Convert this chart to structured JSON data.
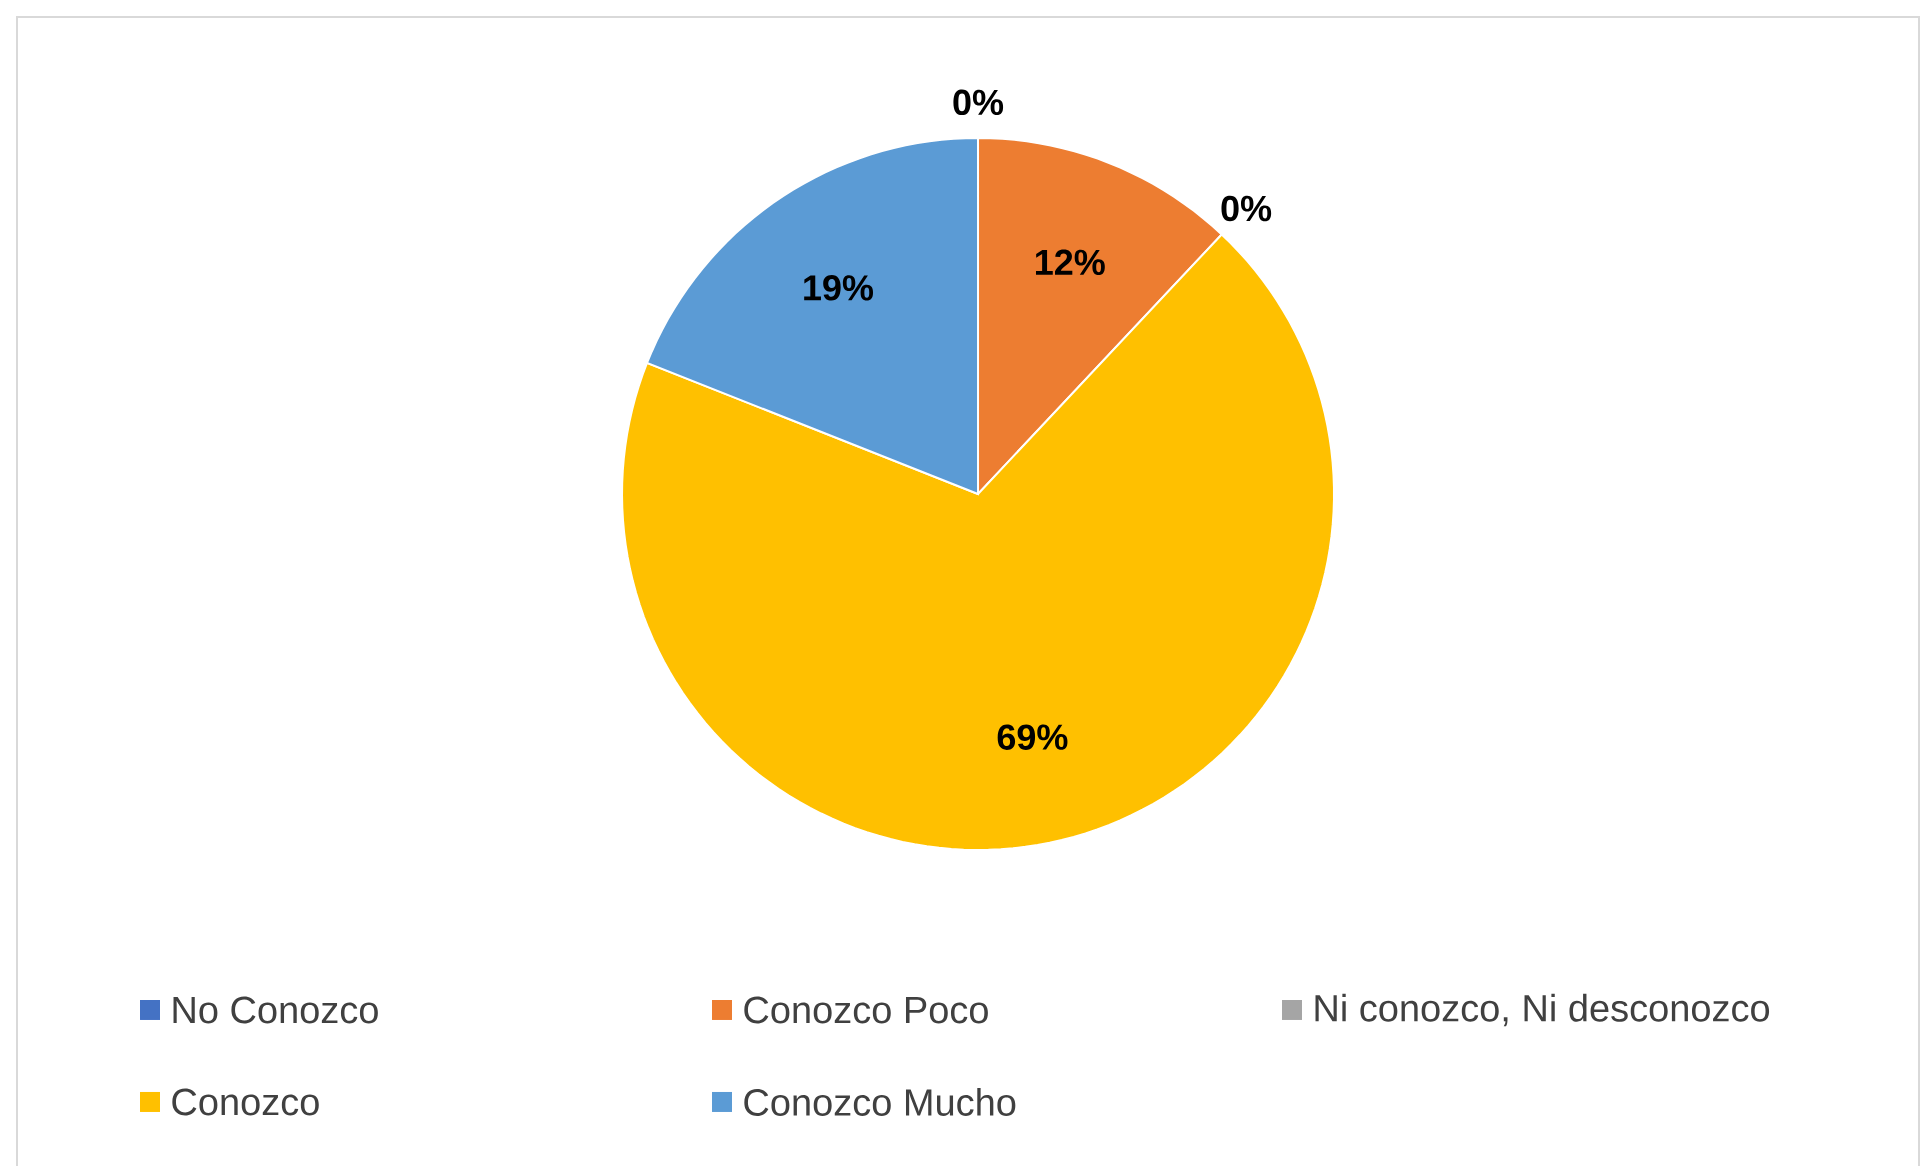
{
  "chart_data": {
    "type": "pie",
    "categories": [
      "No Conozco",
      "Conozco Poco",
      "Ni conozco, Ni desconozco",
      "Conozco",
      "Conozco Mucho"
    ],
    "values": [
      0,
      12,
      0,
      69,
      19
    ],
    "colors": [
      "#4472c4",
      "#ed7d31",
      "#a5a5a5",
      "#ffc000",
      "#5b9bd5"
    ],
    "value_labels": [
      "0%",
      "12%",
      "0%",
      "69%",
      "19%"
    ],
    "legend": "bottom"
  }
}
